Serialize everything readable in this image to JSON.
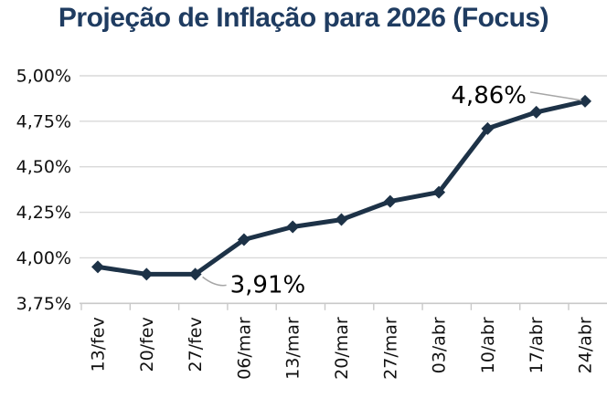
{
  "title": {
    "text": "Projeção de Inflação para 2026 (Focus)",
    "color": "#1f3c61"
  },
  "chart_data": {
    "type": "line",
    "title": "Projeção de Inflação para 2026 (Focus)",
    "categories": [
      "13/fev",
      "20/fev",
      "27/fev",
      "06/mar",
      "13/mar",
      "20/mar",
      "27/mar",
      "03/abr",
      "10/abr",
      "17/abr",
      "24/abr"
    ],
    "values": [
      3.95,
      3.91,
      3.91,
      4.1,
      4.17,
      4.21,
      4.31,
      4.36,
      4.71,
      4.8,
      4.86
    ],
    "xlabel": "",
    "ylabel": "",
    "ylim": [
      3.75,
      5.0
    ],
    "ytick_step": 0.25,
    "ytick_labels": [
      "3,75%",
      "4,00%",
      "4,25%",
      "4,50%",
      "4,75%",
      "5,00%"
    ],
    "grid": true,
    "legend_position": "none",
    "marker": "diamond",
    "annotations": [
      {
        "text": "3,91%",
        "point_index": 2,
        "position": "below-right"
      },
      {
        "text": "4,86%",
        "point_index": 10,
        "position": "above-left"
      }
    ],
    "colors": {
      "series_line": "#1d3247",
      "marker_fill": "#1d3247",
      "gridline": "#d9d9d9",
      "axis_line": "#c9c9c9",
      "tick_label": "#111111",
      "data_label": "#000000",
      "leader_line": "#a6a6a6",
      "background": "#ffffff"
    }
  }
}
